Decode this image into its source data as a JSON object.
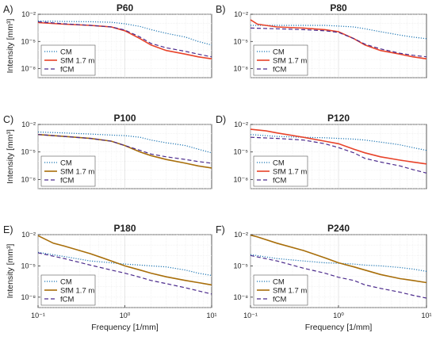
{
  "chart_data": [
    {
      "type": "line",
      "panel_label": "A)",
      "title": "P60",
      "xlabel": "",
      "ylabel": "Intensity [mm³]",
      "xscale": "log",
      "yscale": "log",
      "xlim": [
        0.1,
        10
      ],
      "ylim": [
        1e-09,
        0.01
      ],
      "xticks": [],
      "yticks": [
        "10⁻²",
        "10⁻⁵",
        "10⁻⁸"
      ],
      "grid": true,
      "legend_position": "bottom-left",
      "series": [
        {
          "name": "CM",
          "color": "#1f77b4",
          "style": "dotted",
          "x": [
            0.1,
            0.2,
            0.4,
            0.7,
            1,
            1.5,
            2,
            3,
            5,
            7,
            10
          ],
          "y": [
            0.0018,
            0.0016,
            0.0015,
            0.0013,
            0.0009,
            0.00045,
            0.0002,
            8e-05,
            3e-05,
            1e-05,
            4e-06
          ]
        },
        {
          "name": "SfM 1.7 m",
          "color": "#e8432a",
          "style": "solid",
          "x": [
            0.1,
            0.2,
            0.4,
            0.7,
            1,
            1.5,
            2,
            3,
            5,
            7,
            10
          ],
          "y": [
            0.0012,
            0.0008,
            0.0006,
            0.0004,
            0.00015,
            2e-05,
            4e-06,
            1e-06,
            4e-07,
            2e-07,
            1.2e-07
          ]
        },
        {
          "name": "fCM",
          "color": "#4b2a8c",
          "style": "dashed",
          "x": [
            0.1,
            0.2,
            0.4,
            0.7,
            1,
            1.5,
            2,
            3,
            5,
            7,
            10
          ],
          "y": [
            0.0015,
            0.0009,
            0.0006,
            0.0004,
            0.00018,
            3e-05,
            6e-06,
            2e-06,
            8e-07,
            4e-07,
            2e-07
          ]
        }
      ]
    },
    {
      "type": "line",
      "panel_label": "B)",
      "title": "P80",
      "xlabel": "",
      "ylabel": "",
      "xscale": "log",
      "yscale": "log",
      "xlim": [
        0.1,
        10
      ],
      "ylim": [
        1e-09,
        0.01
      ],
      "xticks": [],
      "yticks": [
        "10⁻²",
        "10⁻⁵",
        "10⁻⁸"
      ],
      "grid": true,
      "legend_position": "bottom-left",
      "series": [
        {
          "name": "CM",
          "color": "#1f77b4",
          "style": "dotted",
          "x": [
            0.1,
            0.2,
            0.4,
            0.7,
            1,
            1.5,
            2,
            3,
            5,
            7,
            10
          ],
          "y": [
            0.0006,
            0.0006,
            0.0006,
            0.0006,
            0.0005,
            0.0004,
            0.00025,
            0.00012,
            5e-05,
            3e-05,
            2e-05
          ]
        },
        {
          "name": "SfM 1.7 m",
          "color": "#e8432a",
          "style": "solid",
          "x": [
            0.1,
            0.12,
            0.2,
            0.4,
            0.7,
            1,
            1.5,
            2,
            3,
            5,
            7,
            10
          ],
          "y": [
            0.0025,
            0.0008,
            0.0004,
            0.0003,
            0.0002,
            0.00012,
            2e-05,
            4e-06,
            1e-06,
            4e-07,
            2e-07,
            1.2e-07
          ]
        },
        {
          "name": "fCM",
          "color": "#4b2a8c",
          "style": "dashed",
          "x": [
            0.1,
            0.2,
            0.4,
            0.7,
            1,
            1.5,
            2,
            3,
            5,
            7,
            10
          ],
          "y": [
            0.0003,
            0.00025,
            0.0002,
            0.00015,
            0.0001,
            2e-05,
            5e-06,
            1.5e-06,
            5e-07,
            3e-07,
            2e-07
          ]
        }
      ]
    },
    {
      "type": "line",
      "panel_label": "C)",
      "title": "P100",
      "xlabel": "",
      "ylabel": "Intensity [mm³]",
      "xscale": "log",
      "yscale": "log",
      "xlim": [
        0.1,
        10
      ],
      "ylim": [
        1e-09,
        0.01
      ],
      "xticks": [],
      "yticks": [
        "10⁻²",
        "10⁻⁵",
        "10⁻⁸"
      ],
      "grid": true,
      "legend_position": "bottom-left",
      "series": [
        {
          "name": "CM",
          "color": "#1f77b4",
          "style": "dotted",
          "x": [
            0.1,
            0.2,
            0.4,
            0.7,
            1,
            1.5,
            2,
            3,
            5,
            7,
            10
          ],
          "y": [
            0.0015,
            0.0012,
            0.0009,
            0.0007,
            0.0006,
            0.0004,
            0.0002,
            0.0001,
            5e-05,
            2e-05,
            8e-06
          ]
        },
        {
          "name": "SfM 1.7 m",
          "color": "#a86e0a",
          "style": "solid",
          "x": [
            0.1,
            0.2,
            0.4,
            0.7,
            1,
            1.5,
            2,
            3,
            5,
            7,
            10
          ],
          "y": [
            0.0008,
            0.0005,
            0.0003,
            0.00015,
            5e-05,
            1e-05,
            4e-06,
            1.5e-06,
            6e-07,
            3e-07,
            1.8e-07
          ]
        },
        {
          "name": "fCM",
          "color": "#4b2a8c",
          "style": "dashed",
          "x": [
            0.1,
            0.2,
            0.4,
            0.7,
            1,
            1.5,
            2,
            3,
            5,
            7,
            10
          ],
          "y": [
            0.0008,
            0.0005,
            0.0003,
            0.00015,
            5e-05,
            1.5e-05,
            6e-06,
            3e-06,
            1.5e-06,
            9e-07,
            6e-07
          ]
        }
      ]
    },
    {
      "type": "line",
      "panel_label": "D)",
      "title": "P120",
      "xlabel": "",
      "ylabel": "",
      "xscale": "log",
      "yscale": "log",
      "xlim": [
        0.1,
        10
      ],
      "ylim": [
        1e-09,
        0.01
      ],
      "xticks": [],
      "yticks": [
        "10⁻²",
        "10⁻⁵",
        "10⁻⁸"
      ],
      "grid": true,
      "legend_position": "bottom-left",
      "series": [
        {
          "name": "CM",
          "color": "#1f77b4",
          "style": "dotted",
          "x": [
            0.1,
            0.2,
            0.4,
            0.7,
            1,
            1.5,
            2,
            3,
            5,
            7,
            10
          ],
          "y": [
            0.0008,
            0.0005,
            0.0004,
            0.00035,
            0.0003,
            0.00025,
            0.0002,
            0.00012,
            6e-05,
            3e-05,
            1.5e-05
          ]
        },
        {
          "name": "SfM 1.7 m",
          "color": "#e8432a",
          "style": "solid",
          "x": [
            0.1,
            0.15,
            0.2,
            0.4,
            0.7,
            1,
            1.5,
            2,
            3,
            5,
            7,
            10
          ],
          "y": [
            0.003,
            0.002,
            0.0012,
            0.0004,
            0.00015,
            8e-05,
            2e-05,
            8e-06,
            3e-06,
            1.3e-06,
            8e-07,
            5e-07
          ]
        },
        {
          "name": "fCM",
          "color": "#4b2a8c",
          "style": "dashed",
          "x": [
            0.1,
            0.2,
            0.4,
            0.7,
            1,
            1.5,
            2,
            3,
            5,
            7,
            10
          ],
          "y": [
            0.0004,
            0.0003,
            0.0002,
            8e-05,
            3e-05,
            8e-06,
            2e-06,
            8e-07,
            3e-07,
            1.2e-07,
            5e-08
          ]
        }
      ]
    },
    {
      "type": "line",
      "panel_label": "E)",
      "title": "P180",
      "xlabel": "Frequency [1/mm]",
      "ylabel": "Intensity [mm³]",
      "xscale": "log",
      "yscale": "log",
      "xlim": [
        0.1,
        10
      ],
      "ylim": [
        1e-09,
        0.01
      ],
      "xticks": [
        "10⁻¹",
        "10⁰",
        "10¹"
      ],
      "yticks": [
        "10⁻²",
        "10⁻⁵",
        "10⁻⁸"
      ],
      "grid": true,
      "legend_position": "bottom-left",
      "series": [
        {
          "name": "CM",
          "color": "#1f77b4",
          "style": "dotted",
          "x": [
            0.1,
            0.2,
            0.4,
            0.7,
            1,
            1.5,
            2,
            3,
            5,
            7,
            10
          ],
          "y": [
            0.0002,
            8e-05,
            3e-05,
            2e-05,
            1.5e-05,
            1.2e-05,
            1e-05,
            8e-06,
            4e-06,
            2e-06,
            1.2e-06
          ]
        },
        {
          "name": "SfM 1.7 m",
          "color": "#a86e0a",
          "style": "solid",
          "x": [
            0.1,
            0.15,
            0.2,
            0.4,
            0.7,
            1,
            1.5,
            2,
            3,
            5,
            7,
            10
          ],
          "y": [
            0.008,
            0.0015,
            0.0008,
            0.00015,
            3e-05,
            1e-05,
            4e-06,
            2e-06,
            9e-07,
            4e-07,
            2.5e-07,
            1.5e-07
          ]
        },
        {
          "name": "fCM",
          "color": "#4b2a8c",
          "style": "dashed",
          "x": [
            0.1,
            0.2,
            0.4,
            0.7,
            1,
            1.5,
            2,
            3,
            5,
            7,
            10
          ],
          "y": [
            0.00018,
            5e-05,
            1.2e-05,
            4e-06,
            2e-06,
            8e-07,
            4e-07,
            2e-07,
            8e-08,
            4e-08,
            2e-08
          ]
        }
      ]
    },
    {
      "type": "line",
      "panel_label": "F)",
      "title": "P240",
      "xlabel": "Frequency [1/mm]",
      "ylabel": "",
      "xscale": "log",
      "yscale": "log",
      "xlim": [
        0.1,
        10
      ],
      "ylim": [
        1e-09,
        0.01
      ],
      "xticks": [
        "10⁻¹",
        "10⁰",
        "10¹"
      ],
      "yticks": [
        "10⁻²",
        "10⁻⁵",
        "10⁻⁸"
      ],
      "grid": true,
      "legend_position": "bottom-left",
      "series": [
        {
          "name": "CM",
          "color": "#1f77b4",
          "style": "dotted",
          "x": [
            0.1,
            0.2,
            0.4,
            0.7,
            1,
            1.5,
            2,
            3,
            5,
            7,
            10
          ],
          "y": [
            0.00012,
            5e-05,
            3e-05,
            2e-05,
            1.8e-05,
            1.5e-05,
            1.2e-05,
            1e-05,
            7e-06,
            5e-06,
            3e-06
          ]
        },
        {
          "name": "SfM 1.7 m",
          "color": "#a86e0a",
          "style": "solid",
          "x": [
            0.1,
            0.12,
            0.2,
            0.4,
            0.7,
            1,
            1.5,
            2,
            3,
            5,
            7,
            10
          ],
          "y": [
            0.009,
            0.006,
            0.0015,
            0.0003,
            6e-05,
            2e-05,
            8e-06,
            4e-06,
            1.5e-06,
            6e-07,
            4e-07,
            2.5e-07
          ]
        },
        {
          "name": "fCM",
          "color": "#4b2a8c",
          "style": "dashed",
          "x": [
            0.1,
            0.2,
            0.4,
            0.7,
            1,
            1.5,
            2,
            3,
            5,
            7,
            10
          ],
          "y": [
            0.0001,
            3e-05,
            6e-06,
            2e-06,
            8e-07,
            4e-07,
            1.5e-07,
            7e-08,
            3e-08,
            1.5e-08,
            8e-09
          ]
        }
      ]
    }
  ]
}
